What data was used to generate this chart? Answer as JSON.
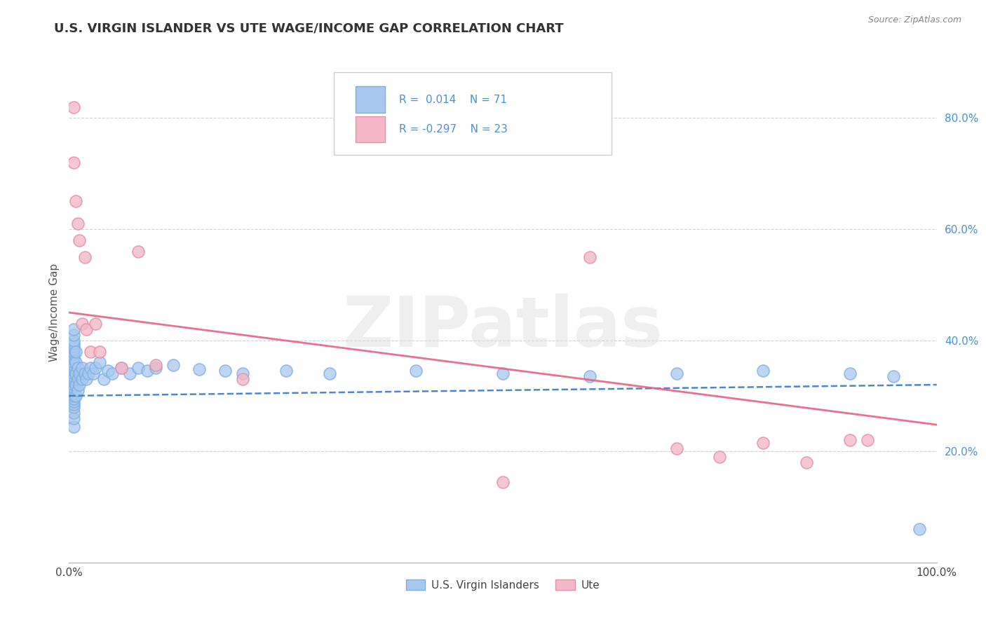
{
  "title": "U.S. VIRGIN ISLANDER VS UTE WAGE/INCOME GAP CORRELATION CHART",
  "source": "Source: ZipAtlas.com",
  "ylabel": "Wage/Income Gap",
  "legend_label1": "U.S. Virgin Islanders",
  "legend_label2": "Ute",
  "r1": 0.014,
  "n1": 71,
  "r2": -0.297,
  "n2": 23,
  "blue_color": "#A8C8F0",
  "blue_edge": "#7BAEE0",
  "pink_color": "#F5B8C8",
  "pink_edge": "#E090A8",
  "blue_line_color": "#3A78C9",
  "pink_line_color": "#E86080",
  "grid_color": "#CCCCCC",
  "watermark": "ZIPatlas",
  "ytick_labels": [
    "20.0%",
    "40.0%",
    "60.0%",
    "80.0%"
  ],
  "ytick_values": [
    0.2,
    0.4,
    0.6,
    0.8
  ],
  "xlim": [
    0.0,
    1.0
  ],
  "ylim": [
    0.0,
    0.9
  ],
  "blue_scatter_x": [
    0.005,
    0.005,
    0.005,
    0.005,
    0.005,
    0.005,
    0.005,
    0.005,
    0.005,
    0.005,
    0.005,
    0.005,
    0.005,
    0.005,
    0.005,
    0.005,
    0.005,
    0.005,
    0.005,
    0.005,
    0.005,
    0.005,
    0.005,
    0.005,
    0.005,
    0.005,
    0.005,
    0.005,
    0.005,
    0.005,
    0.008,
    0.008,
    0.008,
    0.008,
    0.008,
    0.01,
    0.01,
    0.01,
    0.012,
    0.012,
    0.015,
    0.015,
    0.018,
    0.02,
    0.022,
    0.025,
    0.028,
    0.03,
    0.035,
    0.04,
    0.045,
    0.05,
    0.06,
    0.07,
    0.08,
    0.09,
    0.1,
    0.12,
    0.15,
    0.18,
    0.2,
    0.25,
    0.3,
    0.4,
    0.5,
    0.6,
    0.7,
    0.8,
    0.9,
    0.95,
    0.98
  ],
  "blue_scatter_y": [
    0.245,
    0.26,
    0.27,
    0.28,
    0.285,
    0.29,
    0.295,
    0.3,
    0.305,
    0.31,
    0.315,
    0.32,
    0.325,
    0.33,
    0.335,
    0.34,
    0.345,
    0.35,
    0.355,
    0.36,
    0.365,
    0.37,
    0.375,
    0.38,
    0.385,
    0.39,
    0.395,
    0.4,
    0.41,
    0.42,
    0.3,
    0.32,
    0.34,
    0.36,
    0.38,
    0.31,
    0.33,
    0.35,
    0.32,
    0.34,
    0.33,
    0.35,
    0.34,
    0.33,
    0.34,
    0.35,
    0.34,
    0.35,
    0.36,
    0.33,
    0.345,
    0.34,
    0.35,
    0.34,
    0.35,
    0.345,
    0.35,
    0.355,
    0.348,
    0.345,
    0.34,
    0.345,
    0.34,
    0.345,
    0.34,
    0.335,
    0.34,
    0.345,
    0.34,
    0.335,
    0.06
  ],
  "pink_scatter_x": [
    0.005,
    0.005,
    0.008,
    0.01,
    0.012,
    0.015,
    0.018,
    0.02,
    0.025,
    0.03,
    0.035,
    0.06,
    0.08,
    0.6,
    0.7,
    0.75,
    0.8,
    0.85,
    0.9,
    0.92,
    0.5,
    0.1,
    0.2
  ],
  "pink_scatter_y": [
    0.82,
    0.72,
    0.65,
    0.61,
    0.58,
    0.43,
    0.55,
    0.42,
    0.38,
    0.43,
    0.38,
    0.35,
    0.56,
    0.55,
    0.205,
    0.19,
    0.215,
    0.18,
    0.22,
    0.22,
    0.145,
    0.355,
    0.33
  ],
  "blue_trend_x": [
    0.0,
    1.0
  ],
  "blue_trend_y": [
    0.3,
    0.32
  ],
  "pink_trend_x": [
    0.0,
    1.0
  ],
  "pink_trend_y": [
    0.45,
    0.248
  ]
}
